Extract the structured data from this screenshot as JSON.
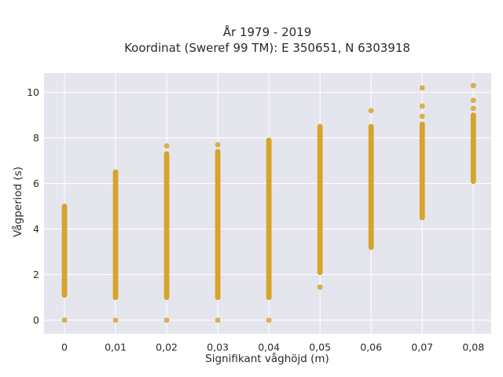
{
  "chart_data": {
    "type": "scatter",
    "title": "År 1979 - 2019",
    "subtitle": "Koordinat (Sweref 99 TM): E 350651, N 6303918",
    "xlabel": "Signifikant våghöjd (m)",
    "ylabel": "Vågperiod (s)",
    "x_ticks": [
      "0",
      "0,01",
      "0,02",
      "0,03",
      "0,04",
      "0,05",
      "0,06",
      "0,07",
      "0,08"
    ],
    "y_ticks": [
      "0",
      "2",
      "4",
      "6",
      "8",
      "10"
    ],
    "xlim": [
      -0.004,
      0.0835
    ],
    "ylim": [
      -0.6,
      10.85
    ],
    "grid": true,
    "marker_color": "#d4a020",
    "plot_background": "#e5e5ee",
    "series": [
      {
        "ranges": [
          {
            "x": 0.0,
            "ymin": 1.1,
            "ymax": 5.0
          },
          {
            "x": 0.01,
            "ymin": 1.0,
            "ymax": 6.5
          },
          {
            "x": 0.02,
            "ymin": 1.0,
            "ymax": 7.3
          },
          {
            "x": 0.03,
            "ymin": 1.0,
            "ymax": 7.4
          },
          {
            "x": 0.04,
            "ymin": 1.0,
            "ymax": 7.9
          },
          {
            "x": 0.05,
            "ymin": 2.1,
            "ymax": 8.5
          },
          {
            "x": 0.06,
            "ymin": 3.2,
            "ymax": 8.5
          },
          {
            "x": 0.07,
            "ymin": 4.5,
            "ymax": 8.6
          },
          {
            "x": 0.08,
            "ymin": 6.1,
            "ymax": 9.0
          }
        ],
        "points": [
          {
            "x": 0.0,
            "y": 0
          },
          {
            "x": 0.01,
            "y": 0
          },
          {
            "x": 0.02,
            "y": 0
          },
          {
            "x": 0.03,
            "y": 0
          },
          {
            "x": 0.04,
            "y": 0
          },
          {
            "x": 0.02,
            "y": 7.65
          },
          {
            "x": 0.03,
            "y": 7.7
          },
          {
            "x": 0.05,
            "y": 1.45
          },
          {
            "x": 0.06,
            "y": 9.2
          },
          {
            "x": 0.07,
            "y": 8.95
          },
          {
            "x": 0.07,
            "y": 9.4
          },
          {
            "x": 0.07,
            "y": 10.2
          },
          {
            "x": 0.08,
            "y": 9.3
          },
          {
            "x": 0.08,
            "y": 9.65
          },
          {
            "x": 0.08,
            "y": 10.3
          }
        ]
      }
    ]
  }
}
